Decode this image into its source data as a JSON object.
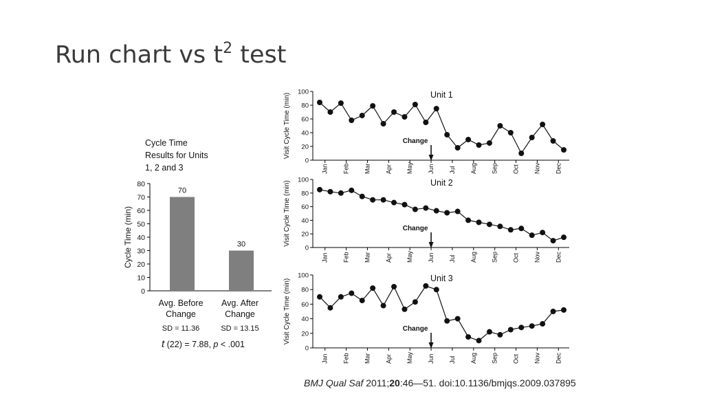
{
  "slide": {
    "title_main": "Run chart vs t",
    "title_sup": "2",
    "title_end": " test"
  },
  "citation": {
    "journal": "BMJ Qual Saf",
    "year": " 2011;",
    "volume": "20",
    "rest": ":46—51. doi:10.1136/bmjqs.2009.037895"
  },
  "chart_data": [
    {
      "type": "bar",
      "title_lines": [
        "Cycle Time",
        "Results for Units",
        "1, 2 and 3"
      ],
      "ylabel": "Cycle Time (min)",
      "ylim": [
        0,
        80
      ],
      "yticks": [
        0,
        10,
        20,
        30,
        40,
        50,
        60,
        70,
        80
      ],
      "categories": [
        {
          "line1": "Avg. Before",
          "line2": "Change"
        },
        {
          "line1": "Avg. After",
          "line2": "Change"
        }
      ],
      "values": [
        70,
        30
      ],
      "value_labels": [
        "70",
        "30"
      ],
      "sd_labels": [
        "SD = 11.36",
        "SD = 13.15"
      ],
      "stat": {
        "t": "t",
        "df": " (22) = 7.88, ",
        "p": "p",
        "rest": " < .001"
      },
      "bar_color": "#7f7f7f"
    },
    {
      "type": "line",
      "title": "Unit 1",
      "ylabel": "Visit Cycle Time (min)",
      "ylim": [
        0,
        100
      ],
      "yticks": [
        0,
        20,
        40,
        60,
        80,
        100
      ],
      "xticks": [
        "Jan",
        "Feb",
        "Mar",
        "Apr",
        "May",
        "Jun",
        "Jul",
        "Aug",
        "Sep",
        "Oct",
        "Nov",
        "Dec"
      ],
      "values": [
        84,
        70,
        83,
        58,
        65,
        79,
        53,
        70,
        63,
        81,
        55,
        75,
        37,
        18,
        30,
        22,
        25,
        50,
        40,
        10,
        33,
        52,
        28,
        15
      ],
      "change_label": "Change",
      "change_at": 5
    },
    {
      "type": "line",
      "title": "Unit 2",
      "ylabel": "Visit Cycle Time (min)",
      "ylim": [
        0,
        100
      ],
      "yticks": [
        0,
        20,
        40,
        60,
        80,
        100
      ],
      "xticks": [
        "Jan",
        "Feb",
        "Mar",
        "Apr",
        "May",
        "Jun",
        "Jul",
        "Aug",
        "Sep",
        "Oct",
        "Nov",
        "Dec"
      ],
      "values": [
        85,
        82,
        80,
        84,
        75,
        70,
        70,
        66,
        63,
        56,
        58,
        54,
        51,
        53,
        40,
        37,
        34,
        31,
        26,
        28,
        18,
        22,
        10,
        15
      ],
      "change_label": "Change",
      "change_at": 5
    },
    {
      "type": "line",
      "title": "Unit 3",
      "ylabel": "Visit Cycle Time (min)",
      "ylim": [
        0,
        100
      ],
      "yticks": [
        0,
        20,
        40,
        60,
        80,
        100
      ],
      "xticks": [
        "Jan",
        "Feb",
        "Mar",
        "Apr",
        "May",
        "Jun",
        "Jul",
        "Aug",
        "Sep",
        "Oct",
        "Nov",
        "Dec"
      ],
      "values": [
        70,
        55,
        70,
        75,
        65,
        82,
        58,
        84,
        53,
        63,
        85,
        80,
        37,
        40,
        15,
        10,
        22,
        18,
        25,
        28,
        30,
        33,
        50,
        52
      ],
      "change_label": "Change",
      "change_at": 5
    }
  ]
}
